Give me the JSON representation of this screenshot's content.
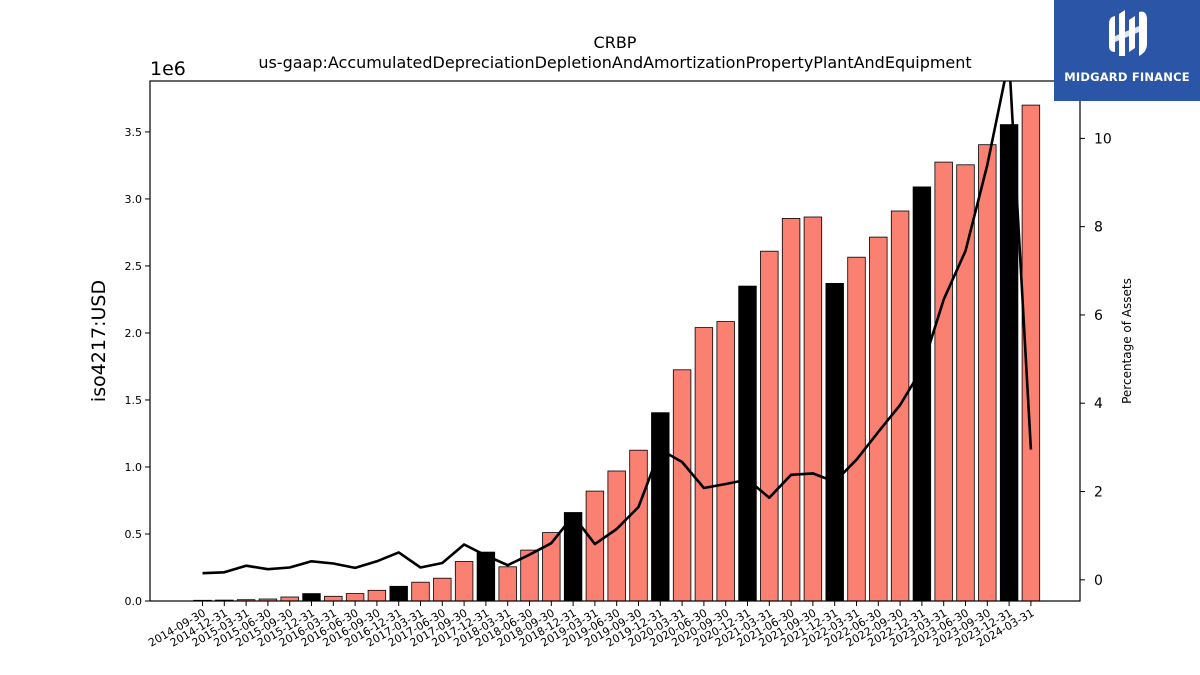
{
  "chart_data": {
    "type": "bar",
    "title": "CRBP",
    "subtitle": "us-gaap:AccumulatedDepreciationDepletionAndAmortizationPropertyPlantAndEquipment",
    "ylabel": "iso4217:USD",
    "y_offset_label": "1e6",
    "y2label": "Percentage of Assets",
    "ylim": [
      0,
      3.88
    ],
    "y2lim": [
      -0.48,
      11.3
    ],
    "yticks": [
      "0.0",
      "0.5",
      "1.0",
      "1.5",
      "2.0",
      "2.5",
      "3.0",
      "3.5"
    ],
    "y2ticks": [
      "0",
      "2",
      "4",
      "6",
      "8",
      "10"
    ],
    "categories": [
      "2014-09-30",
      "2014-12-31",
      "2015-03-31",
      "2015-06-30",
      "2015-09-30",
      "2015-12-31",
      "2016-03-31",
      "2016-06-30",
      "2016-09-30",
      "2016-12-31",
      "2017-03-31",
      "2017-06-30",
      "2017-09-30",
      "2017-12-31",
      "2018-03-31",
      "2018-06-30",
      "2018-09-30",
      "2018-12-31",
      "2019-03-31",
      "2019-06-30",
      "2019-09-30",
      "2019-12-31",
      "2020-03-31",
      "2020-06-30",
      "2020-09-30",
      "2020-12-31",
      "2021-03-31",
      "2021-06-30",
      "2021-09-30",
      "2021-12-31",
      "2022-03-31",
      "2022-06-30",
      "2022-09-30",
      "2022-12-31",
      "2023-03-31",
      "2023-06-30",
      "2023-09-30",
      "2023-12-31",
      "2024-03-31"
    ],
    "series": [
      {
        "type": "bar",
        "unit_multiplier": "1e6",
        "values": [
          0.005,
          0.007,
          0.01,
          0.015,
          0.03,
          0.055,
          0.035,
          0.055,
          0.08,
          0.11,
          0.14,
          0.17,
          0.295,
          0.365,
          0.255,
          0.38,
          0.51,
          0.66,
          0.82,
          0.97,
          1.125,
          1.405,
          1.725,
          2.04,
          2.085,
          2.35,
          2.61,
          2.855,
          2.865,
          2.37,
          2.565,
          2.715,
          2.91,
          3.09,
          3.275,
          3.255,
          3.405,
          3.555,
          3.7
        ],
        "highlight": [
          false,
          false,
          false,
          false,
          false,
          true,
          false,
          false,
          false,
          true,
          false,
          false,
          false,
          true,
          false,
          false,
          false,
          true,
          false,
          false,
          false,
          true,
          false,
          false,
          false,
          true,
          false,
          false,
          false,
          true,
          false,
          false,
          false,
          true,
          false,
          false,
          false,
          true,
          false
        ]
      },
      {
        "type": "line",
        "axis": "right",
        "values": [
          0.15,
          0.17,
          0.32,
          0.24,
          0.28,
          0.42,
          0.37,
          0.27,
          0.42,
          0.62,
          0.28,
          0.38,
          0.8,
          0.55,
          0.33,
          0.57,
          0.83,
          1.45,
          0.81,
          1.15,
          1.65,
          2.95,
          2.67,
          2.08,
          2.17,
          2.27,
          1.86,
          2.38,
          2.41,
          2.22,
          2.72,
          3.35,
          3.96,
          4.78,
          6.35,
          7.45,
          9.4,
          11.8,
          2.95
        ]
      }
    ],
    "colors": {
      "bar": "#fa8072",
      "bar_highlight": "#000000",
      "line": "#000000"
    }
  },
  "logo": {
    "text": "MIDGARD FINANCE",
    "color": "#2b56a8"
  }
}
